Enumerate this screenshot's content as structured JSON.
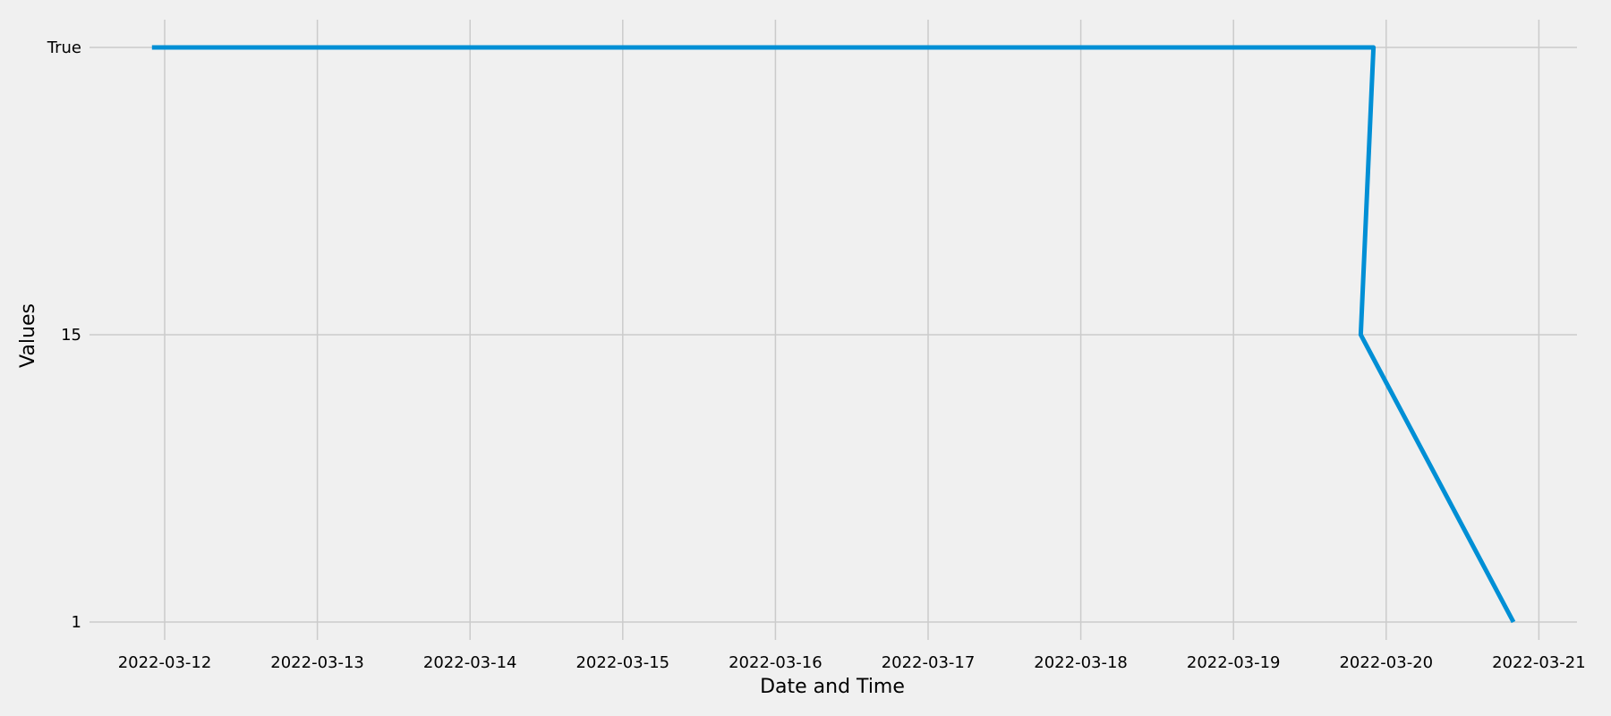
{
  "chart_data": {
    "type": "line",
    "xlabel": "Date and Time",
    "ylabel": "Values",
    "x_tick_labels": [
      "2022-03-12",
      "2022-03-13",
      "2022-03-14",
      "2022-03-15",
      "2022-03-16",
      "2022-03-17",
      "2022-03-18",
      "2022-03-19",
      "2022-03-20",
      "2022-03-21"
    ],
    "y_categories": [
      "1",
      "15",
      "True"
    ],
    "series": [
      {
        "color": "#008fd5",
        "points": [
          {
            "x": "2022-03-11 22:00",
            "y": "True"
          },
          {
            "x": "2022-03-19 22:00",
            "y": "True"
          },
          {
            "x": "2022-03-19 20:00",
            "y": "15"
          },
          {
            "x": "2022-03-20 20:00",
            "y": "1"
          }
        ]
      }
    ],
    "grid": true
  }
}
